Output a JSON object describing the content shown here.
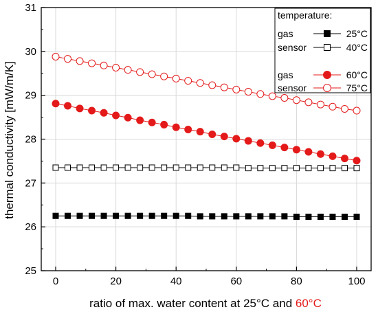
{
  "chart_data": {
    "type": "line",
    "xlabel": {
      "parts": [
        {
          "text": "ratio of max. water content at 25°C and ",
          "color": "#000000"
        },
        {
          "text": "60°C",
          "color": "#e41a1a"
        }
      ]
    },
    "ylabel": "thermal conductivity [mW/m/K]",
    "xlim": [
      -5,
      105
    ],
    "ylim": [
      25,
      31
    ],
    "xticks": [
      0,
      20,
      40,
      60,
      80,
      100
    ],
    "yticks": [
      25,
      26,
      27,
      28,
      29,
      30,
      31
    ],
    "grid": true,
    "legend": {
      "position": "top-right",
      "title": "temperature:",
      "entries": [
        {
          "group": "gas",
          "series": "25°C"
        },
        {
          "group": "sensor",
          "series": "40°C"
        },
        {
          "group": "gas",
          "series": "60°C"
        },
        {
          "group": "sensor",
          "series": "75°C"
        }
      ]
    },
    "x": [
      0,
      4,
      8,
      12,
      16,
      20,
      24,
      28,
      32,
      36,
      40,
      44,
      48,
      52,
      56,
      60,
      64,
      68,
      72,
      76,
      80,
      84,
      88,
      92,
      96,
      100
    ],
    "series": [
      {
        "name": "25°C",
        "color": "#000000",
        "marker": "square",
        "filled": true,
        "values": [
          26.25,
          26.25,
          26.25,
          26.25,
          26.25,
          26.25,
          26.25,
          26.25,
          26.25,
          26.25,
          26.25,
          26.25,
          26.24,
          26.24,
          26.24,
          26.24,
          26.24,
          26.24,
          26.24,
          26.24,
          26.23,
          26.23,
          26.23,
          26.23,
          26.23,
          26.23
        ]
      },
      {
        "name": "40°C",
        "color": "#000000",
        "marker": "square",
        "filled": false,
        "values": [
          27.35,
          27.35,
          27.35,
          27.35,
          27.35,
          27.35,
          27.35,
          27.35,
          27.35,
          27.35,
          27.35,
          27.35,
          27.35,
          27.35,
          27.35,
          27.35,
          27.34,
          27.34,
          27.34,
          27.34,
          27.34,
          27.34,
          27.34,
          27.34,
          27.34,
          27.34
        ]
      },
      {
        "name": "60°C",
        "color": "#e41a1a",
        "marker": "circle",
        "filled": true,
        "values": [
          28.81,
          28.76,
          28.7,
          28.65,
          28.6,
          28.54,
          28.49,
          28.43,
          28.38,
          28.33,
          28.27,
          28.22,
          28.17,
          28.11,
          28.06,
          28.01,
          27.96,
          27.91,
          27.86,
          27.81,
          27.76,
          27.71,
          27.66,
          27.61,
          27.56,
          27.51
        ]
      },
      {
        "name": "75°C",
        "color": "#e41a1a",
        "marker": "circle",
        "filled": false,
        "values": [
          29.88,
          29.83,
          29.78,
          29.73,
          29.68,
          29.63,
          29.58,
          29.53,
          29.48,
          29.43,
          29.38,
          29.33,
          29.28,
          29.23,
          29.18,
          29.13,
          29.08,
          29.03,
          28.98,
          28.94,
          28.89,
          28.84,
          28.79,
          28.74,
          28.69,
          28.65
        ]
      }
    ]
  }
}
